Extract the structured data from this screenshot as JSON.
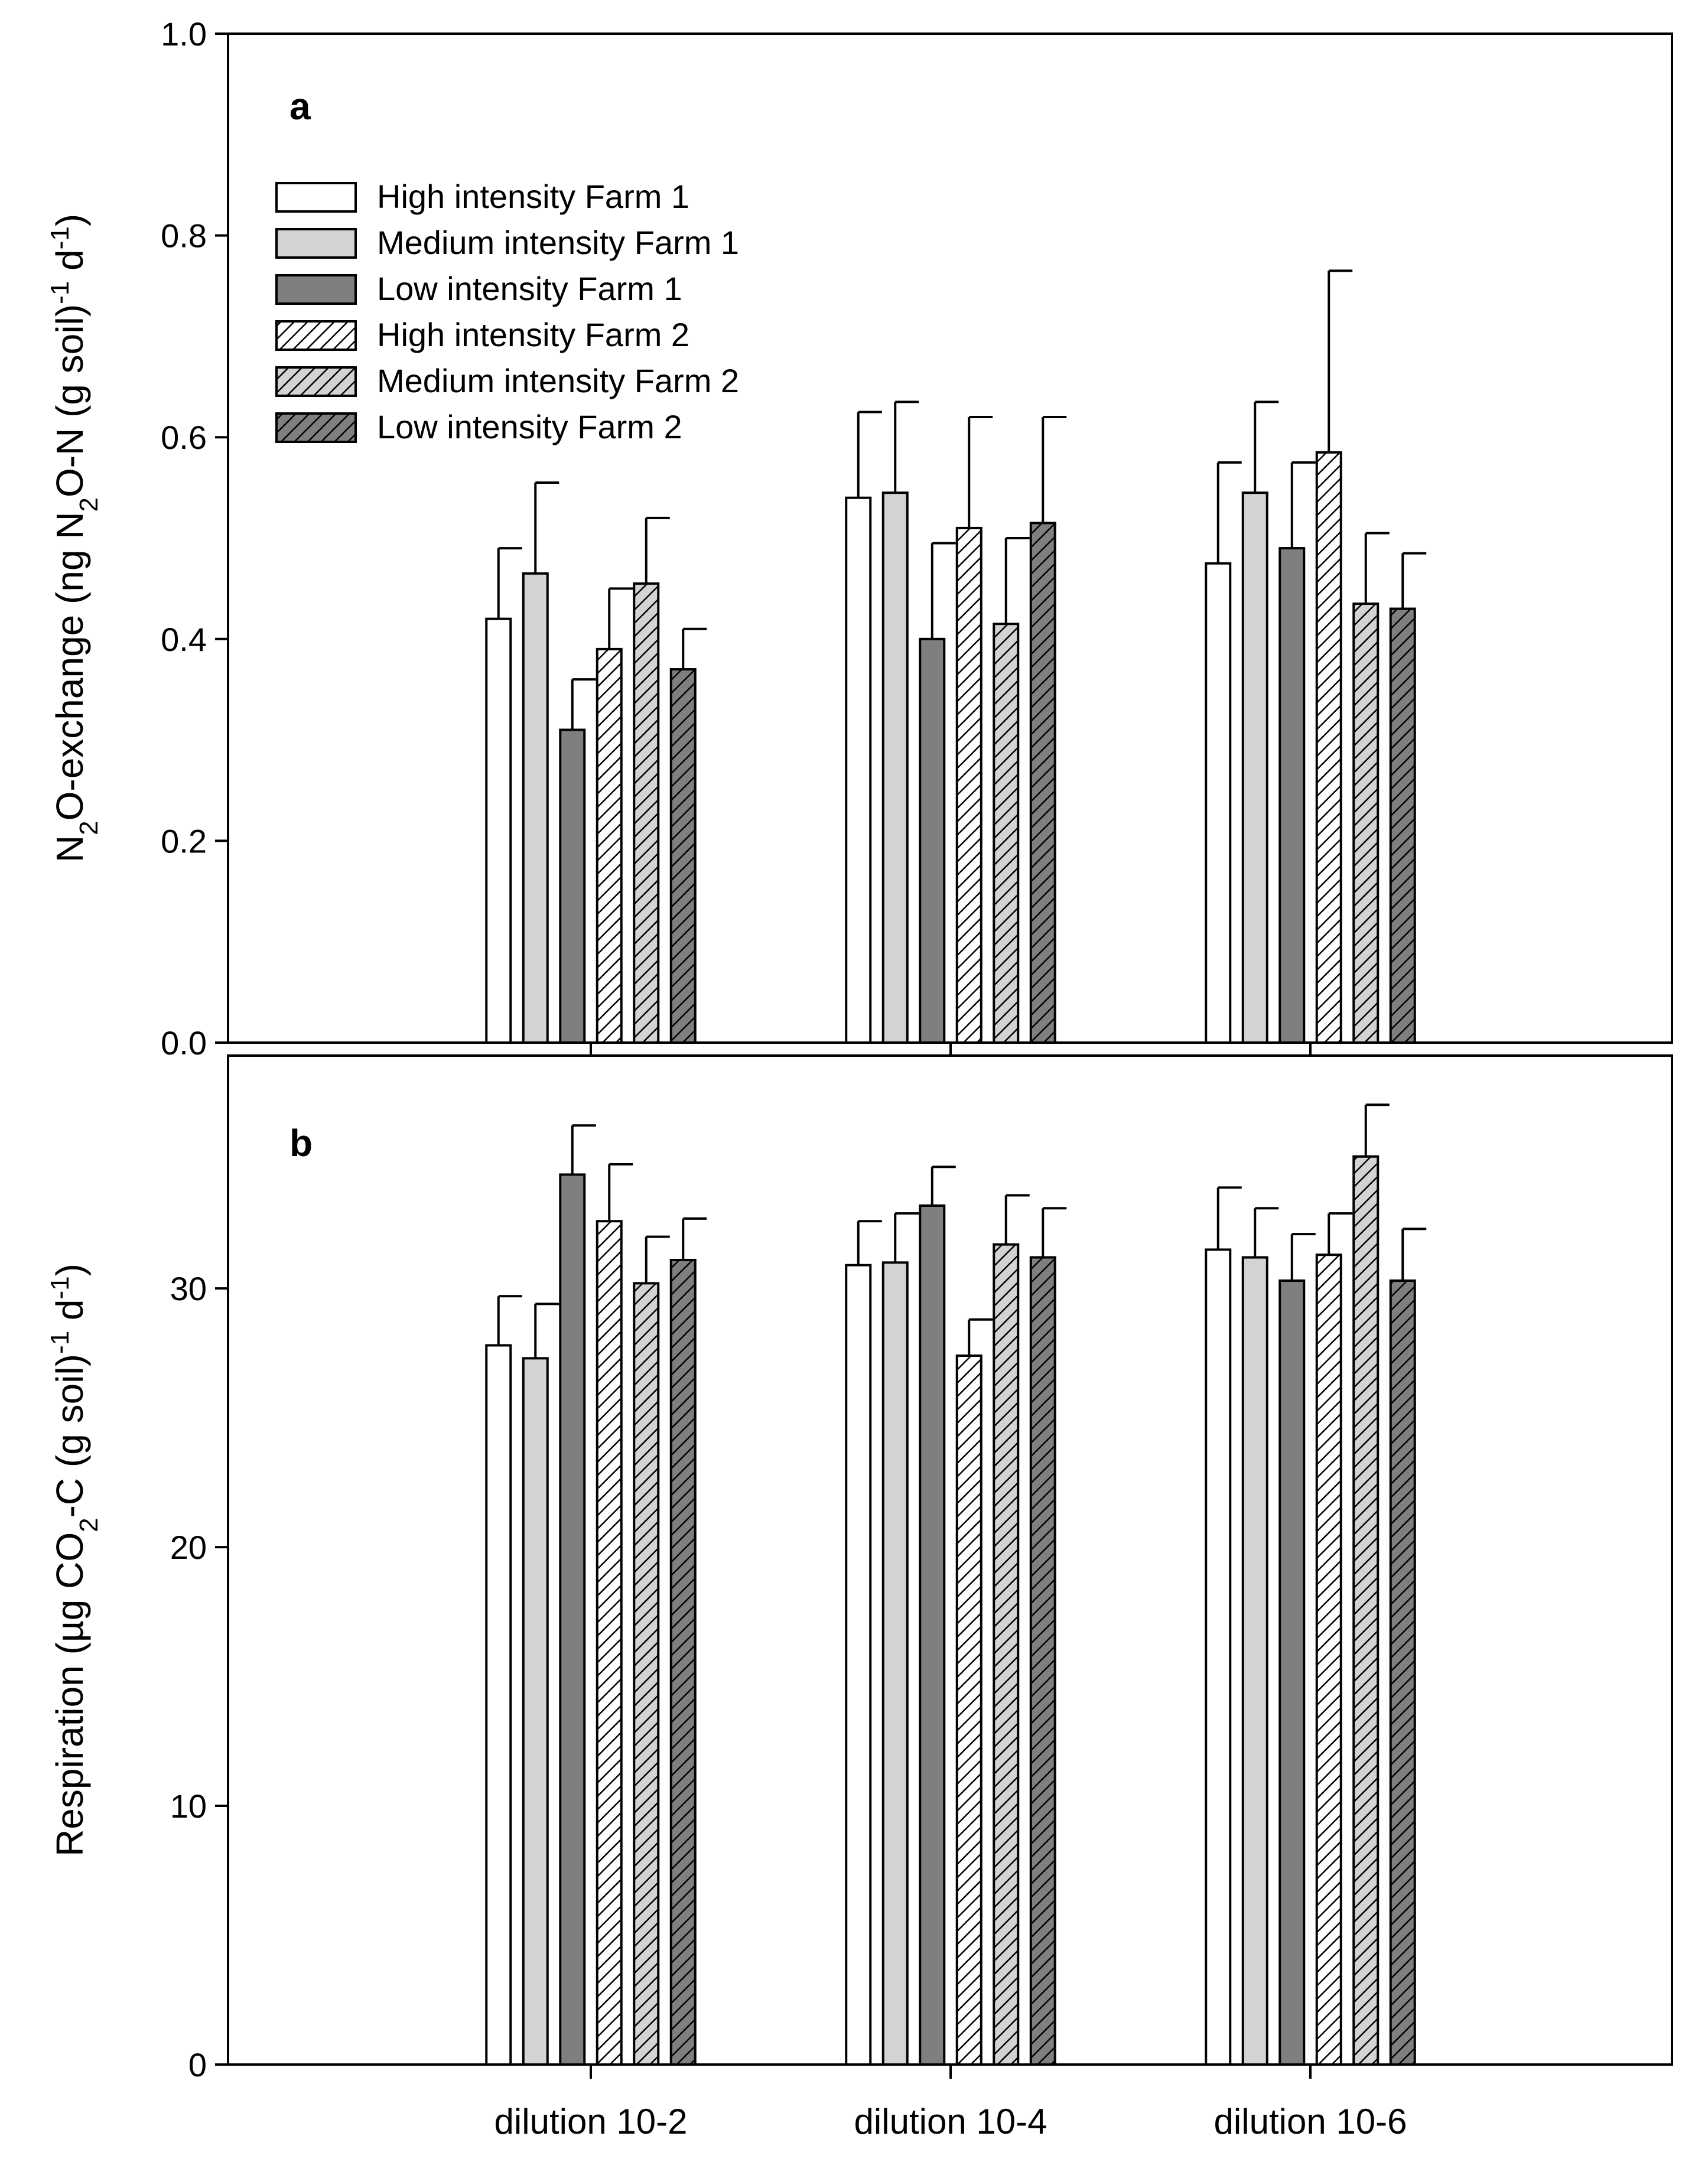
{
  "chart_data": [
    {
      "panel_label": "a",
      "type": "bar",
      "categories": [
        "dilution 10-2",
        "dilution 10-4",
        "dilution 10-6"
      ],
      "ylabel": {
        "parts": [
          {
            "text": "N",
            "style": "normal"
          },
          {
            "text": "2",
            "style": "sub"
          },
          {
            "text": "O-exchange (ng N",
            "style": "normal"
          },
          {
            "text": "2",
            "style": "sub"
          },
          {
            "text": "O-N (g soil)",
            "style": "normal"
          },
          {
            "text": "-1",
            "style": "sup"
          },
          {
            "text": " d",
            "style": "normal"
          },
          {
            "text": "-1",
            "style": "sup"
          },
          {
            "text": ")",
            "style": "normal"
          }
        ]
      },
      "ylim": [
        0,
        1.0
      ],
      "yticks": [
        0.0,
        0.2,
        0.4,
        0.6,
        0.8,
        1.0
      ],
      "ytick_labels": [
        "0.0",
        "0.2",
        "0.4",
        "0.6",
        "0.8",
        "1.0"
      ],
      "legend_position": "top-left",
      "series": [
        {
          "name": "High intensity Farm 1",
          "fill": "white",
          "hatch": false,
          "values": [
            0.42,
            0.54,
            0.475
          ],
          "errors": [
            0.07,
            0.085,
            0.1
          ]
        },
        {
          "name": "Medium intensity Farm 1",
          "fill": "light",
          "hatch": false,
          "values": [
            0.465,
            0.545,
            0.545
          ],
          "errors": [
            0.09,
            0.09,
            0.09
          ]
        },
        {
          "name": "Low intensity Farm 1",
          "fill": "dark",
          "hatch": false,
          "values": [
            0.31,
            0.4,
            0.49
          ],
          "errors": [
            0.05,
            0.095,
            0.085
          ]
        },
        {
          "name": "High intensity Farm 2",
          "fill": "white",
          "hatch": true,
          "values": [
            0.39,
            0.51,
            0.585
          ],
          "errors": [
            0.06,
            0.11,
            0.18
          ]
        },
        {
          "name": "Medium intensity Farm 2",
          "fill": "light",
          "hatch": true,
          "values": [
            0.455,
            0.415,
            0.435
          ],
          "errors": [
            0.065,
            0.085,
            0.07
          ]
        },
        {
          "name": "Low intensity Farm 2",
          "fill": "dark",
          "hatch": true,
          "values": [
            0.37,
            0.515,
            0.43
          ],
          "errors": [
            0.04,
            0.105,
            0.055
          ]
        }
      ]
    },
    {
      "panel_label": "b",
      "type": "bar",
      "categories": [
        "dilution 10-2",
        "dilution 10-4",
        "dilution 10-6"
      ],
      "ylabel": {
        "parts": [
          {
            "text": "Respiration (µg CO",
            "style": "normal"
          },
          {
            "text": "2",
            "style": "sub"
          },
          {
            "text": "-C (g soil)",
            "style": "normal"
          },
          {
            "text": "-1",
            "style": "sup"
          },
          {
            "text": " d",
            "style": "normal"
          },
          {
            "text": "-1",
            "style": "sup"
          },
          {
            "text": ")",
            "style": "normal"
          }
        ]
      },
      "ylim": [
        0,
        39
      ],
      "yticks": [
        0,
        10,
        20,
        30
      ],
      "ytick_labels": [
        "0",
        "10",
        "20",
        "30"
      ],
      "series": [
        {
          "name": "High intensity Farm 1",
          "fill": "white",
          "hatch": false,
          "values": [
            27.8,
            30.9,
            31.5
          ],
          "errors": [
            1.9,
            1.7,
            2.4
          ]
        },
        {
          "name": "Medium intensity Farm 1",
          "fill": "light",
          "hatch": false,
          "values": [
            27.3,
            31.0,
            31.2
          ],
          "errors": [
            2.1,
            1.9,
            1.9
          ]
        },
        {
          "name": "Low intensity Farm 1",
          "fill": "dark",
          "hatch": false,
          "values": [
            34.4,
            33.2,
            30.3
          ],
          "errors": [
            1.9,
            1.5,
            1.8
          ]
        },
        {
          "name": "High intensity Farm 2",
          "fill": "white",
          "hatch": true,
          "values": [
            32.6,
            27.4,
            31.3
          ],
          "errors": [
            2.2,
            1.4,
            1.6
          ]
        },
        {
          "name": "Medium intensity Farm 2",
          "fill": "light",
          "hatch": true,
          "values": [
            30.2,
            31.7,
            35.1
          ],
          "errors": [
            1.8,
            1.9,
            2.0
          ]
        },
        {
          "name": "Low intensity Farm 2",
          "fill": "dark",
          "hatch": true,
          "values": [
            31.1,
            31.2,
            30.3
          ],
          "errors": [
            1.6,
            1.9,
            2.0
          ]
        }
      ]
    }
  ],
  "colors": {
    "white": "#ffffff",
    "light": "#d3d3d3",
    "dark": "#7f7f7f",
    "stroke": "#000000"
  }
}
